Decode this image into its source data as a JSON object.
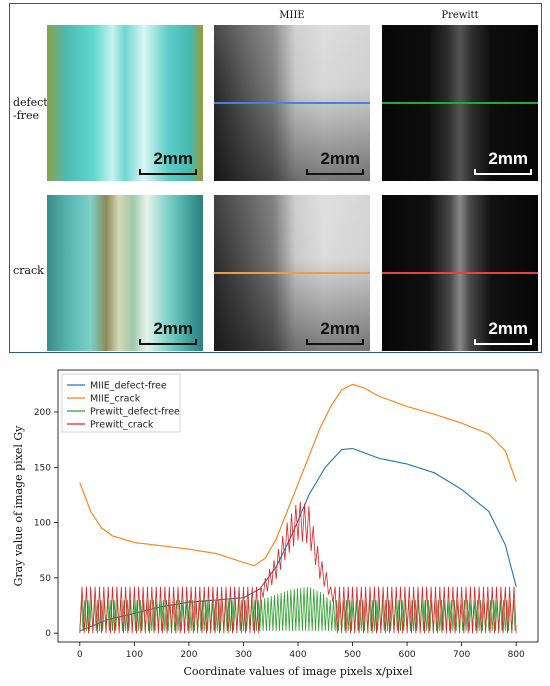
{
  "figure": {
    "col_headers": [
      "MIIE",
      "Prewitt"
    ],
    "row_labels": [
      "defect\n-free",
      "crack"
    ],
    "scale_label": "2mm",
    "line_colors": {
      "miie_defect_free": "#4a7ee0",
      "prewitt_defect_free": "#1faa3b",
      "miie_crack": "#f39a4a",
      "prewitt_crack": "#e8433f"
    }
  },
  "chart_data": {
    "type": "line",
    "xlabel": "Coordinate values of image pixels x/pixel",
    "ylabel": "Gray value of image pixel Gy",
    "xlim": [
      -40,
      840
    ],
    "ylim": [
      -8,
      238
    ],
    "xticks": [
      0,
      100,
      200,
      300,
      400,
      500,
      600,
      700,
      800
    ],
    "yticks": [
      0,
      50,
      100,
      150,
      200
    ],
    "legend_position": "top-left",
    "series": [
      {
        "name": "MIIE_defect-free",
        "color": "#1f77b4",
        "x": [
          0,
          50,
          100,
          150,
          200,
          250,
          300,
          330,
          360,
          390,
          420,
          450,
          480,
          500,
          550,
          600,
          650,
          700,
          750,
          780,
          800
        ],
        "y": [
          2,
          12,
          18,
          24,
          28,
          30,
          32,
          40,
          60,
          90,
          125,
          150,
          166,
          167,
          158,
          153,
          145,
          130,
          110,
          80,
          42
        ]
      },
      {
        "name": "MIIE_crack",
        "color": "#ff7f0e",
        "x": [
          0,
          20,
          40,
          60,
          100,
          150,
          200,
          250,
          300,
          320,
          340,
          360,
          380,
          400,
          420,
          440,
          460,
          480,
          500,
          520,
          550,
          600,
          650,
          700,
          750,
          780,
          800
        ],
        "y": [
          136,
          110,
          95,
          88,
          82,
          79,
          76,
          72,
          64,
          61,
          68,
          85,
          110,
          135,
          160,
          185,
          205,
          220,
          225,
          222,
          214,
          205,
          198,
          190,
          180,
          165,
          137
        ]
      },
      {
        "name": "Prewitt_defect-free",
        "color": "#2ca02c",
        "x": [
          0,
          100,
          200,
          300,
          330,
          360,
          390,
          420,
          450,
          480,
          500,
          600,
          700,
          800
        ],
        "y": [
          15,
          15,
          15,
          20,
          30,
          35,
          40,
          42,
          35,
          10,
          18,
          15,
          15,
          15
        ]
      },
      {
        "name": "Prewitt_crack",
        "color": "#d62728",
        "x": [
          0,
          100,
          200,
          300,
          330,
          360,
          380,
          400,
          420,
          440,
          460,
          480,
          500,
          600,
          700,
          800
        ],
        "y": [
          21,
          21,
          21,
          21,
          40,
          70,
          100,
          120,
          115,
          70,
          45,
          20,
          21,
          21,
          21,
          21
        ]
      }
    ]
  }
}
